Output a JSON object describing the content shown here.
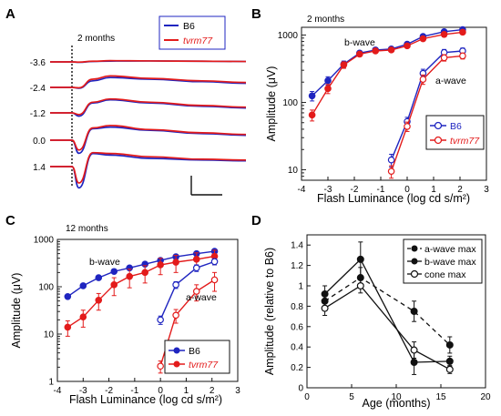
{
  "colors": {
    "B6": "#1f25c0",
    "tvrm77": "#e31b1b",
    "black": "#111111"
  },
  "chart_data": [
    {
      "panel": "A",
      "type": "line",
      "note": "2 months",
      "row_labels": [
        "-3.6",
        "-2.4",
        "-1.2",
        "0.0",
        "1.4"
      ],
      "legend": [
        {
          "name": "B6",
          "italic": false,
          "color": "#1f25c0"
        },
        {
          "name": "tvrm77",
          "italic": true,
          "color": "#e31b1b"
        }
      ],
      "series": [
        {
          "name": "B6",
          "row": 0,
          "values": [
            0,
            -0.5,
            0.5,
            1,
            1.2,
            0.8,
            0.5
          ]
        },
        {
          "name": "tvrm77",
          "row": 0,
          "values": [
            0,
            -0.3,
            0.8,
            1.5,
            1.2,
            0.8,
            0.5
          ]
        },
        {
          "name": "B6",
          "row": 1,
          "values": [
            0,
            -1,
            8,
            12,
            10,
            7,
            5
          ]
        },
        {
          "name": "tvrm77",
          "row": 1,
          "values": [
            0,
            -0.5,
            10,
            14,
            11,
            8,
            6
          ]
        },
        {
          "name": "B6",
          "row": 2,
          "values": [
            0,
            -4,
            12,
            16,
            12,
            8,
            6
          ]
        },
        {
          "name": "tvrm77",
          "row": 2,
          "values": [
            0,
            -2,
            13,
            17,
            13,
            9,
            7
          ]
        },
        {
          "name": "B6",
          "row": 3,
          "values": [
            0,
            -16,
            14,
            16,
            12,
            8,
            6
          ]
        },
        {
          "name": "tvrm77",
          "row": 3,
          "values": [
            0,
            -12,
            15,
            18,
            13,
            9,
            7
          ]
        },
        {
          "name": "B6",
          "row": 4,
          "values": [
            0,
            -26,
            16,
            14,
            10,
            8,
            7
          ]
        },
        {
          "name": "tvrm77",
          "row": 4,
          "values": [
            0,
            -20,
            17,
            16,
            12,
            9,
            8
          ]
        }
      ]
    },
    {
      "panel": "B",
      "type": "line",
      "note": "2 months",
      "xlabel": "Flash Luminance (log cd s/m²)",
      "ylabel": "Amplitude (μV)",
      "xlim": [
        -4,
        3
      ],
      "ylim": [
        7,
        1300
      ],
      "yscale": "log",
      "xticks": [
        -4,
        -3,
        -2,
        -1,
        0,
        1,
        2,
        3
      ],
      "yticks": [
        10,
        100,
        1000
      ],
      "annotations": [
        "b-wave",
        "a-wave"
      ],
      "legend": [
        {
          "name": "B6",
          "italic": false,
          "color": "#1f25c0",
          "marker": "open-circle"
        },
        {
          "name": "tvrm77",
          "italic": true,
          "color": "#e31b1b",
          "marker": "open-circle"
        }
      ],
      "series": [
        {
          "name": "B6",
          "wave": "b-wave",
          "marker": "filled",
          "x": [
            -3.6,
            -3.0,
            -2.4,
            -1.8,
            -1.2,
            -0.6,
            0.0,
            0.6,
            1.4,
            2.1
          ],
          "y": [
            125,
            210,
            370,
            540,
            600,
            620,
            730,
            950,
            1120,
            1200
          ],
          "err": [
            20,
            30,
            40,
            40,
            40,
            40,
            40,
            60,
            80,
            80
          ]
        },
        {
          "name": "tvrm77",
          "wave": "b-wave",
          "marker": "filled",
          "x": [
            -3.6,
            -3.0,
            -2.4,
            -1.8,
            -1.2,
            -0.6,
            0.0,
            0.6,
            1.4,
            2.1
          ],
          "y": [
            65,
            160,
            360,
            520,
            580,
            600,
            690,
            880,
            1020,
            1100
          ],
          "err": [
            12,
            25,
            40,
            40,
            40,
            40,
            40,
            60,
            80,
            80
          ]
        },
        {
          "name": "B6",
          "wave": "a-wave",
          "marker": "open",
          "x": [
            -0.6,
            0.0,
            0.6,
            1.4,
            2.1
          ],
          "y": [
            14,
            52,
            270,
            550,
            580
          ],
          "err": [
            3,
            8,
            40,
            60,
            60
          ]
        },
        {
          "name": "tvrm77",
          "wave": "a-wave",
          "marker": "open",
          "x": [
            -0.6,
            0.0,
            0.6,
            1.4,
            2.1
          ],
          "y": [
            9.5,
            44,
            220,
            460,
            490
          ],
          "err": [
            2,
            7,
            35,
            50,
            50
          ]
        }
      ]
    },
    {
      "panel": "C",
      "type": "line",
      "note": "12 months",
      "xlabel": "Flash Luminance (log cd s/m²)",
      "ylabel": "Amplitude (μV)",
      "xlim": [
        -4,
        3
      ],
      "ylim": [
        1,
        1000
      ],
      "yscale": "log",
      "xticks": [
        -4,
        -3,
        -2,
        -1,
        0,
        1,
        2,
        3
      ],
      "yticks": [
        1,
        10,
        100,
        1000
      ],
      "annotations": [
        "b-wave",
        "a-wave"
      ],
      "legend": [
        {
          "name": "B6",
          "italic": false,
          "color": "#1f25c0",
          "marker": "filled-circle"
        },
        {
          "name": "tvrm77",
          "italic": true,
          "color": "#e31b1b",
          "marker": "filled-circle"
        }
      ],
      "series": [
        {
          "name": "B6",
          "wave": "b-wave",
          "marker": "filled",
          "x": [
            -3.6,
            -3.0,
            -2.4,
            -1.8,
            -1.2,
            -0.6,
            0.0,
            0.6,
            1.4,
            2.1
          ],
          "y": [
            62,
            105,
            155,
            210,
            250,
            300,
            360,
            430,
            500,
            560
          ],
          "err": [
            0,
            0,
            0,
            0,
            0,
            0,
            0,
            0,
            0,
            0
          ]
        },
        {
          "name": "tvrm77",
          "wave": "b-wave",
          "marker": "filled",
          "x": [
            -3.6,
            -3.0,
            -2.4,
            -1.8,
            -1.2,
            -0.6,
            0.0,
            0.6,
            1.4,
            2.1
          ],
          "y": [
            14,
            23,
            52,
            110,
            165,
            200,
            290,
            330,
            380,
            440
          ],
          "err": [
            5,
            9,
            20,
            45,
            70,
            80,
            110,
            130,
            140,
            150
          ]
        },
        {
          "name": "B6",
          "wave": "a-wave",
          "marker": "open",
          "x": [
            0.0,
            0.6,
            1.4,
            2.1
          ],
          "y": [
            20,
            110,
            250,
            340
          ],
          "err": [
            4,
            18,
            40,
            50
          ]
        },
        {
          "name": "tvrm77",
          "wave": "a-wave",
          "marker": "open",
          "x": [
            0.0,
            0.6,
            1.4,
            2.1
          ],
          "y": [
            2.1,
            25,
            80,
            140
          ],
          "err": [
            0.6,
            8,
            30,
            60
          ]
        }
      ]
    },
    {
      "panel": "D",
      "type": "line",
      "xlabel": "Age (months)",
      "ylabel": "Amplitude (relative to B6)",
      "xlim": [
        0,
        20
      ],
      "ylim": [
        0,
        1.5
      ],
      "xticks": [
        0,
        5,
        10,
        15,
        20
      ],
      "yticks": [
        0,
        0.2,
        0.4,
        0.6,
        0.8,
        1,
        1.2,
        1.4
      ],
      "legend_position": "top-right",
      "series": [
        {
          "name": "a-wave max",
          "style": "dashed",
          "marker": "filled",
          "x": [
            2,
            6,
            12,
            16
          ],
          "y": [
            0.85,
            1.08,
            0.75,
            0.42
          ],
          "err": [
            0.05,
            0.1,
            0.1,
            0.08
          ]
        },
        {
          "name": "b-wave max",
          "style": "solid",
          "marker": "filled",
          "x": [
            2,
            6,
            12,
            16
          ],
          "y": [
            0.92,
            1.26,
            0.25,
            0.26
          ],
          "err": [
            0.08,
            0.17,
            0.12,
            0.05
          ]
        },
        {
          "name": "cone max",
          "style": "solid",
          "marker": "open",
          "x": [
            2,
            6,
            12,
            16
          ],
          "y": [
            0.78,
            1.0,
            0.37,
            0.18
          ],
          "err": [
            0.07,
            0.07,
            0.08,
            0.04
          ]
        }
      ]
    }
  ]
}
